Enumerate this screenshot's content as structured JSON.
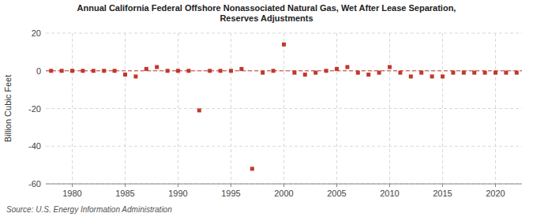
{
  "chart_data": {
    "type": "scatter",
    "title": "Annual California Federal Offshore Nonassociated Natural Gas, Wet After Lease Separation,\nReserves Adjustments",
    "y_label": "Billion Cubic Feet",
    "annotations": [
      "Source: U.S. Energy Information Administration"
    ],
    "color": "#c0392b",
    "marker": "square",
    "grid": true,
    "xlim": [
      1977.5,
      2022.5
    ],
    "ylim": [
      -60,
      20
    ],
    "xticks": [
      1980,
      1985,
      1990,
      1995,
      2000,
      2005,
      2010,
      2015,
      2020
    ],
    "yticks": [
      -60,
      -40,
      -20,
      0,
      20
    ],
    "x": [
      1978,
      1979,
      1980,
      1981,
      1982,
      1983,
      1984,
      1985,
      1986,
      1987,
      1988,
      1989,
      1990,
      1991,
      1992,
      1993,
      1994,
      1995,
      1996,
      1997,
      1998,
      1999,
      2000,
      2001,
      2002,
      2003,
      2004,
      2005,
      2006,
      2007,
      2008,
      2009,
      2010,
      2011,
      2012,
      2013,
      2014,
      2015,
      2016,
      2017,
      2018,
      2019,
      2020,
      2021,
      2022
    ],
    "values": [
      0,
      0,
      0,
      0,
      0,
      0,
      0,
      -2,
      -3,
      1,
      2,
      0,
      0,
      0,
      -21,
      0,
      0,
      0,
      1,
      -52,
      -1,
      0,
      14,
      -1,
      -2,
      -1,
      0,
      1,
      2,
      -1,
      -2,
      -1,
      2,
      -1,
      -3,
      -1,
      -3,
      -3,
      -1,
      -1,
      -1,
      -1,
      -1,
      -1,
      -1
    ]
  }
}
